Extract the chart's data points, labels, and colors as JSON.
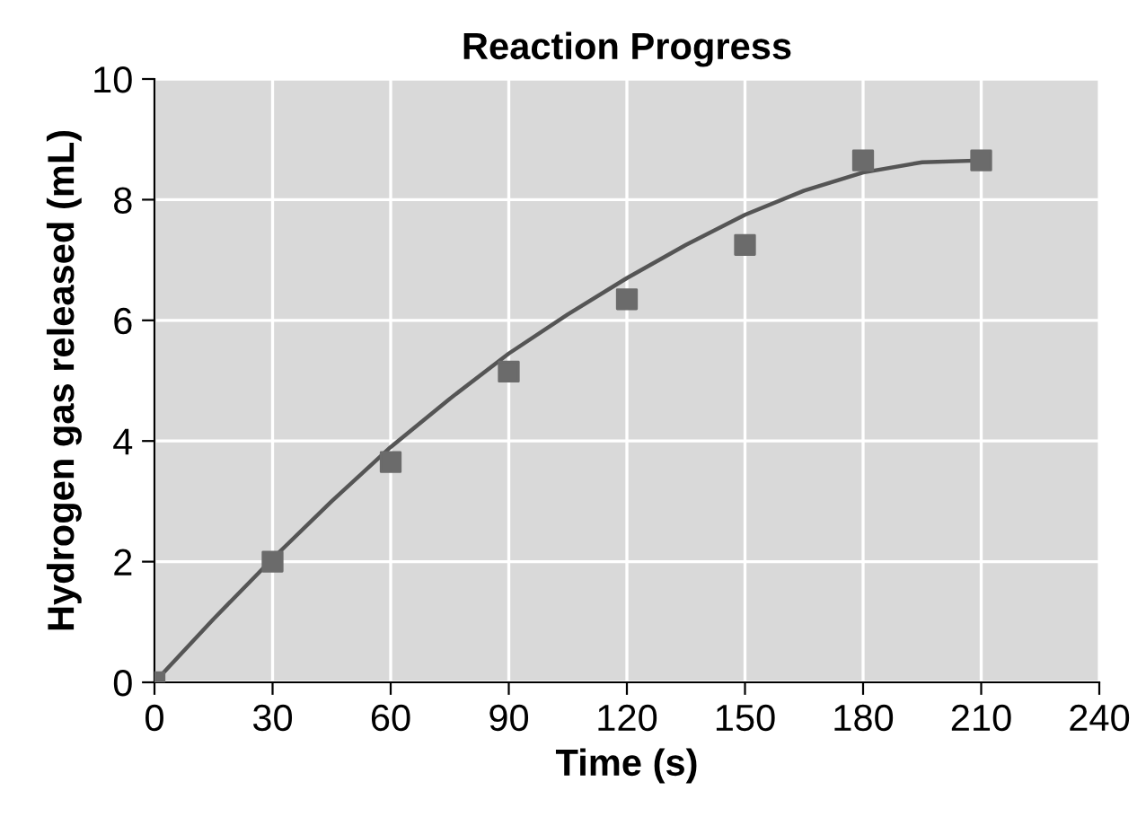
{
  "chart_data": {
    "type": "scatter",
    "title": "Reaction Progress",
    "xlabel": "Time (s)",
    "ylabel": "Hydrogen gas released (mL)",
    "series": [
      {
        "color": "#6b6b6b",
        "marker": "square",
        "x": [
          0,
          30,
          60,
          90,
          120,
          150,
          180,
          210
        ],
        "values": [
          0,
          2.0,
          3.65,
          5.15,
          6.35,
          7.25,
          8.65,
          8.65
        ]
      },
      {
        "type": "line",
        "color": "#555555",
        "marker": "none",
        "x": [
          0,
          15,
          30,
          45,
          60,
          75,
          90,
          105,
          120,
          135,
          150,
          165,
          180,
          195,
          210
        ],
        "values": [
          0,
          1.05,
          2.05,
          3.0,
          3.9,
          4.7,
          5.45,
          6.1,
          6.7,
          7.25,
          7.75,
          8.15,
          8.45,
          8.62,
          8.65
        ]
      }
    ],
    "xlim": [
      0,
      240
    ],
    "xticks": [
      0,
      30,
      60,
      90,
      120,
      150,
      180,
      210,
      240
    ],
    "ylim": [
      0,
      10
    ],
    "yticks": [
      0,
      2,
      4,
      6,
      8,
      10
    ],
    "grid": true
  }
}
